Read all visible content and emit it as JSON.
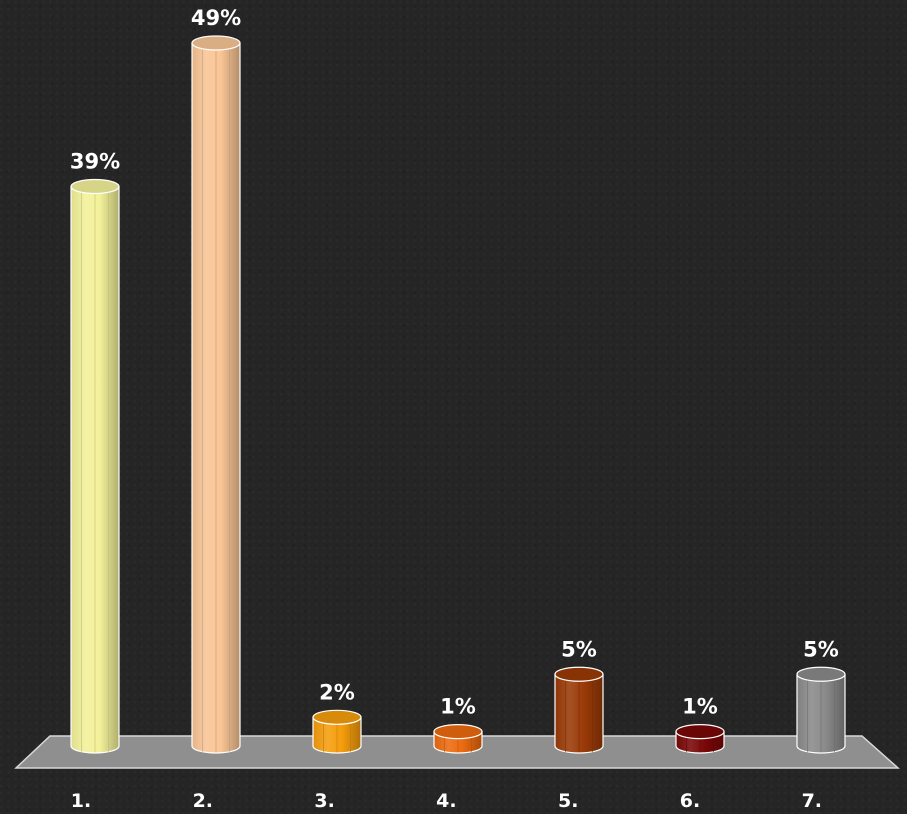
{
  "chart_data": {
    "type": "bar",
    "style": "3d-cylinder",
    "categories": [
      "1.",
      "2.",
      "3.",
      "4.",
      "5.",
      "6.",
      "7."
    ],
    "values": [
      39,
      49,
      2,
      1,
      5,
      1,
      5
    ],
    "data_labels": [
      "39%",
      "49%",
      "2%",
      "1%",
      "5%",
      "1%",
      "5%"
    ],
    "colors": [
      "#f3f199",
      "#f9c595",
      "#f59d0c",
      "#ec6a0f",
      "#9a3a07",
      "#7a0707",
      "#8a8a8a"
    ],
    "ylim": [
      0,
      49
    ],
    "grid": false,
    "legend": false,
    "floor_color": "#8f8f8f",
    "background": "#252525"
  }
}
